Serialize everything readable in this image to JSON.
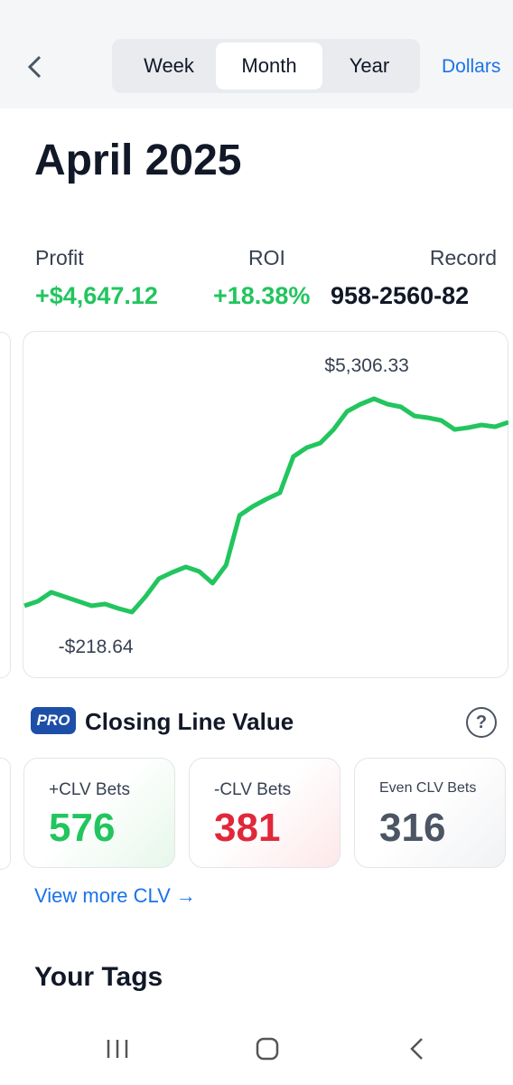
{
  "nav": {
    "tabs": [
      "Week",
      "Month",
      "Year"
    ],
    "active": "Month",
    "currency": "Dollars"
  },
  "title": "April 2025",
  "stats": [
    {
      "label": "Profit",
      "value": "+$4,647.12"
    },
    {
      "label": "ROI",
      "value": "+18.38%"
    },
    {
      "label": "Record",
      "value": "958-2560-82"
    }
  ],
  "chart_data": {
    "type": "line",
    "color": "#22c55e",
    "values": [
      -55,
      63,
      297,
      180,
      63,
      -55,
      -8,
      -125,
      -218.64,
      180,
      648,
      812,
      952,
      835,
      530,
      999,
      2286,
      2520,
      2708,
      2871,
      3808,
      4042,
      4159,
      4510,
      4979,
      5166,
      5306.33,
      5166,
      5096,
      4862,
      4815,
      4745,
      4510,
      4557,
      4627,
      4580,
      4698
    ],
    "annotations": [
      {
        "label": "$5,306.33",
        "value": 5306.33
      },
      {
        "label": "-$218.64",
        "value": -218.64
      }
    ]
  },
  "clv": {
    "badge": "PRO",
    "title": "Closing Line Value",
    "help": "?",
    "cards": [
      {
        "label": "+CLV Bets",
        "value": 576,
        "color": "#22c55e"
      },
      {
        "label": "-CLV Bets",
        "value": 381,
        "color": "#e0283a"
      },
      {
        "label": "Even CLV Bets",
        "value": 316,
        "color": "#4b5563"
      }
    ],
    "link": "View more CLV"
  },
  "section": "Your Tags"
}
